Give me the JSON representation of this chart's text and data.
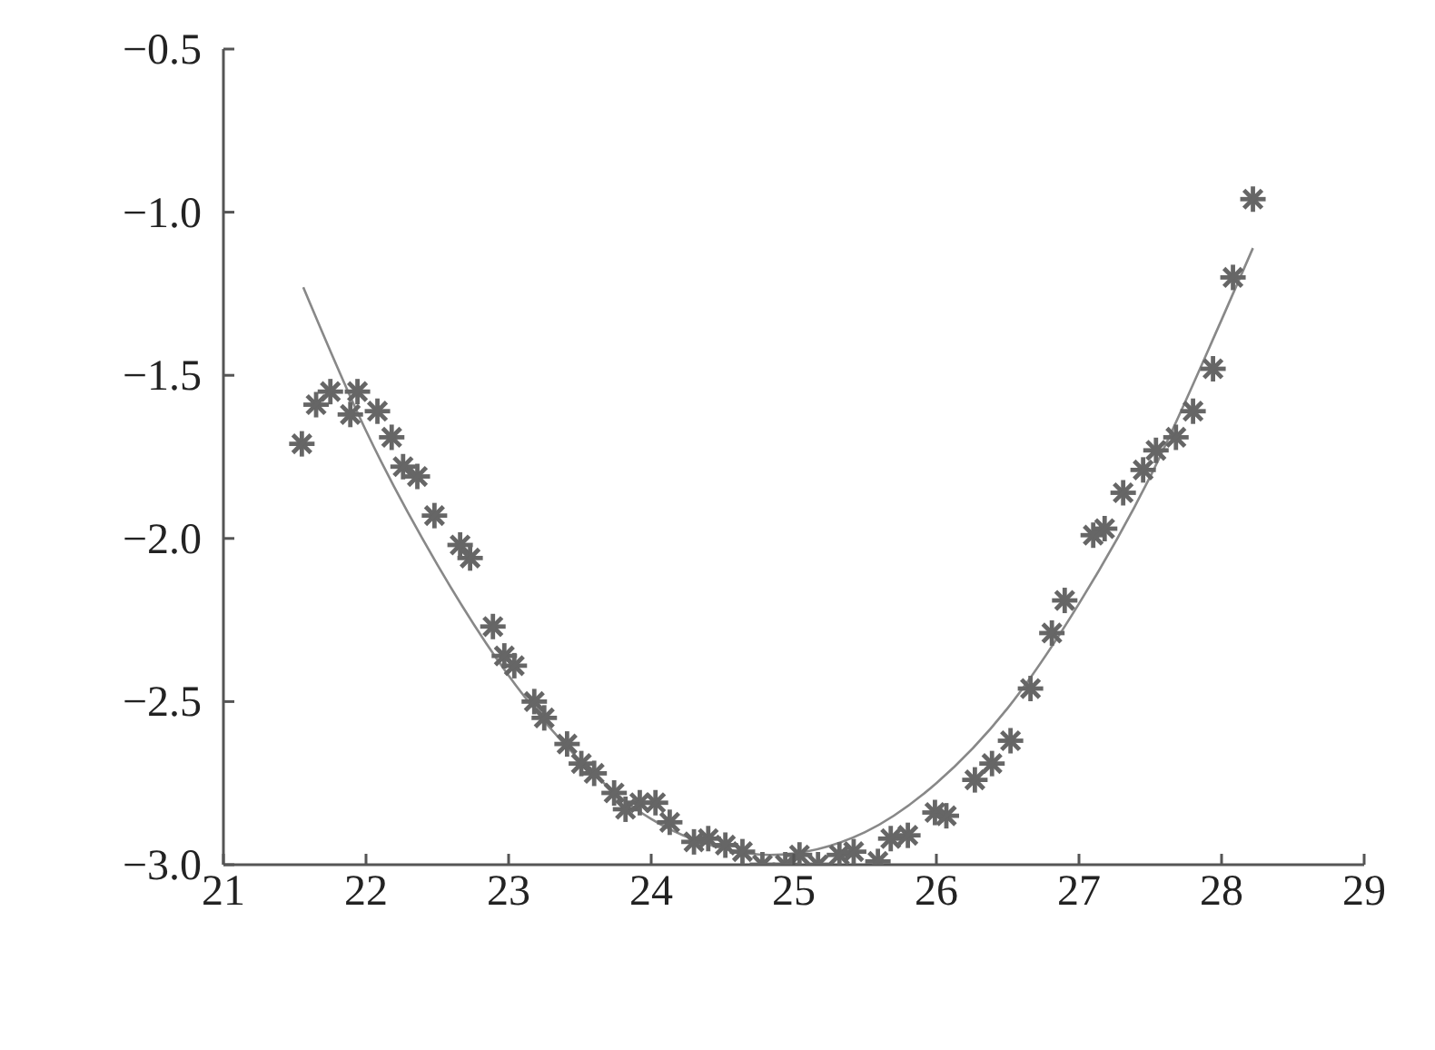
{
  "chart_data": {
    "type": "scatter",
    "xlim": [
      21,
      29
    ],
    "xticks": [
      21,
      22,
      23,
      24,
      25,
      26,
      27,
      28,
      29
    ],
    "ylim": [
      -3.0,
      -0.5
    ],
    "yticks": [
      {
        "value": -3.0,
        "label": "−3.0"
      },
      {
        "value": -2.5,
        "label": "−2.5"
      },
      {
        "value": -2.0,
        "label": "−2.0"
      },
      {
        "value": -1.5,
        "label": "−1.5"
      },
      {
        "value": -1.0,
        "label": "−1.0"
      },
      {
        "value": -0.5,
        "label": "−0.5"
      }
    ],
    "grid": false,
    "legend": false,
    "series": [
      {
        "marker": "cross",
        "color": "#666666",
        "x": [
          21.55,
          21.65,
          21.75,
          21.89,
          21.94,
          22.08,
          22.18,
          22.26,
          22.36,
          22.48,
          22.66,
          22.73,
          22.89,
          22.97,
          23.04,
          23.18,
          23.25,
          23.41,
          23.51,
          23.6,
          23.74,
          23.82,
          23.92,
          24.03,
          24.13,
          24.3,
          24.4,
          24.52,
          24.64,
          24.78,
          24.94,
          25.04,
          25.17,
          25.32,
          25.42,
          25.59,
          25.68,
          25.8,
          25.99,
          26.07,
          26.27,
          26.39,
          26.52,
          26.66,
          26.81,
          26.9,
          27.1,
          27.18,
          27.31,
          27.45,
          27.54,
          27.68,
          27.8,
          27.94,
          28.08,
          28.22
        ],
        "values": [
          -1.71,
          -1.59,
          -1.55,
          -1.62,
          -1.55,
          -1.61,
          -1.69,
          -1.78,
          -1.81,
          -1.93,
          -2.02,
          -2.06,
          -2.27,
          -2.36,
          -2.39,
          -2.5,
          -2.55,
          -2.63,
          -2.69,
          -2.72,
          -2.78,
          -2.83,
          -2.81,
          -2.81,
          -2.87,
          -2.93,
          -2.92,
          -2.94,
          -2.96,
          -3.0,
          -3.0,
          -2.97,
          -3.0,
          -2.97,
          -2.96,
          -2.99,
          -2.92,
          -2.91,
          -2.84,
          -2.85,
          -2.74,
          -2.69,
          -2.62,
          -2.46,
          -2.29,
          -2.19,
          -1.99,
          -1.97,
          -1.86,
          -1.79,
          -1.73,
          -1.69,
          -1.61,
          -1.48,
          -1.2,
          -0.96
        ]
      },
      {
        "type": "line",
        "marker": "none",
        "line_style": "solid",
        "color": "#888888",
        "x": [
          21.56,
          22,
          22.5,
          23,
          23.5,
          24,
          24.5,
          24.83,
          25.5,
          26,
          26.5,
          27,
          27.5,
          28,
          28.22
        ],
        "values": [
          -1.23,
          -1.67,
          -2.08,
          -2.42,
          -2.68,
          -2.86,
          -2.95,
          -2.97,
          -2.9,
          -2.75,
          -2.52,
          -2.2,
          -1.81,
          -1.33,
          -1.11
        ]
      }
    ]
  }
}
